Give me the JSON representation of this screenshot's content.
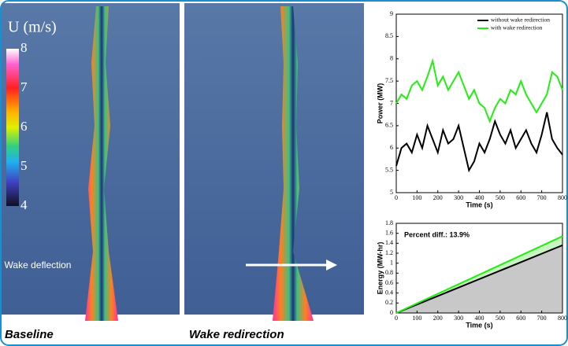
{
  "figure": {
    "colorbar_label": "U (m/s)",
    "colorbar_lim": [
      4,
      8
    ],
    "colorbar_ticks": [
      8,
      7,
      6,
      5,
      4
    ],
    "captions": [
      "Baseline",
      "Wake redirection"
    ],
    "annotation": "Wake deflection"
  },
  "chart_data": [
    {
      "type": "line",
      "ylabel": "Power (MW)",
      "xlabel": "Time (s)",
      "x": [
        0,
        25,
        50,
        75,
        100,
        125,
        150,
        175,
        200,
        225,
        250,
        275,
        300,
        325,
        350,
        375,
        400,
        425,
        450,
        475,
        500,
        525,
        550,
        575,
        600,
        625,
        650,
        675,
        700,
        725,
        750,
        775,
        800
      ],
      "series": [
        {
          "name": "without wake redirection",
          "color": "#000000",
          "values": [
            5.6,
            6.0,
            6.1,
            5.9,
            6.3,
            6.0,
            6.5,
            6.2,
            5.9,
            6.4,
            6.1,
            6.2,
            6.5,
            6.0,
            5.5,
            5.7,
            6.1,
            5.9,
            6.2,
            6.6,
            6.3,
            6.1,
            6.4,
            6.0,
            6.2,
            6.4,
            6.1,
            5.9,
            6.3,
            6.8,
            6.2,
            6.0,
            5.85
          ]
        },
        {
          "name": "with wake redirection",
          "color": "#22ee11",
          "values": [
            7.0,
            7.2,
            7.1,
            7.4,
            7.5,
            7.3,
            7.6,
            7.95,
            7.4,
            7.6,
            7.3,
            7.5,
            7.7,
            7.4,
            7.1,
            7.3,
            7.0,
            6.9,
            6.6,
            6.9,
            7.1,
            7.0,
            7.3,
            7.2,
            7.5,
            7.2,
            7.0,
            6.8,
            7.0,
            7.2,
            7.7,
            7.6,
            7.3
          ]
        }
      ],
      "xlim": [
        0,
        800
      ],
      "xticks": [
        0,
        100,
        200,
        300,
        400,
        500,
        600,
        700,
        800
      ],
      "ylim": [
        5,
        9
      ],
      "yticks": [
        5,
        5.5,
        6,
        6.5,
        7,
        7.5,
        8,
        8.5,
        9
      ],
      "legend": "upper right"
    },
    {
      "type": "area",
      "ylabel": "Energy (MW-hr)",
      "xlabel": "Time (s)",
      "annotation": "Percent diff.: 13.9%",
      "x": [
        0,
        800
      ],
      "series": [
        {
          "color": "#000000",
          "fill": "#c8c8c8",
          "values": [
            0,
            1.36
          ]
        },
        {
          "color": "#22ee11",
          "fill": "#c8f5c0",
          "values": [
            0,
            1.54
          ]
        }
      ],
      "xlim": [
        0,
        800
      ],
      "xticks": [
        0,
        100,
        200,
        300,
        400,
        500,
        600,
        700,
        800
      ],
      "ylim": [
        0,
        1.8
      ],
      "yticks": [
        0,
        0.2,
        0.4,
        0.6,
        0.8,
        1,
        1.2,
        1.4,
        1.6,
        1.8
      ]
    }
  ]
}
